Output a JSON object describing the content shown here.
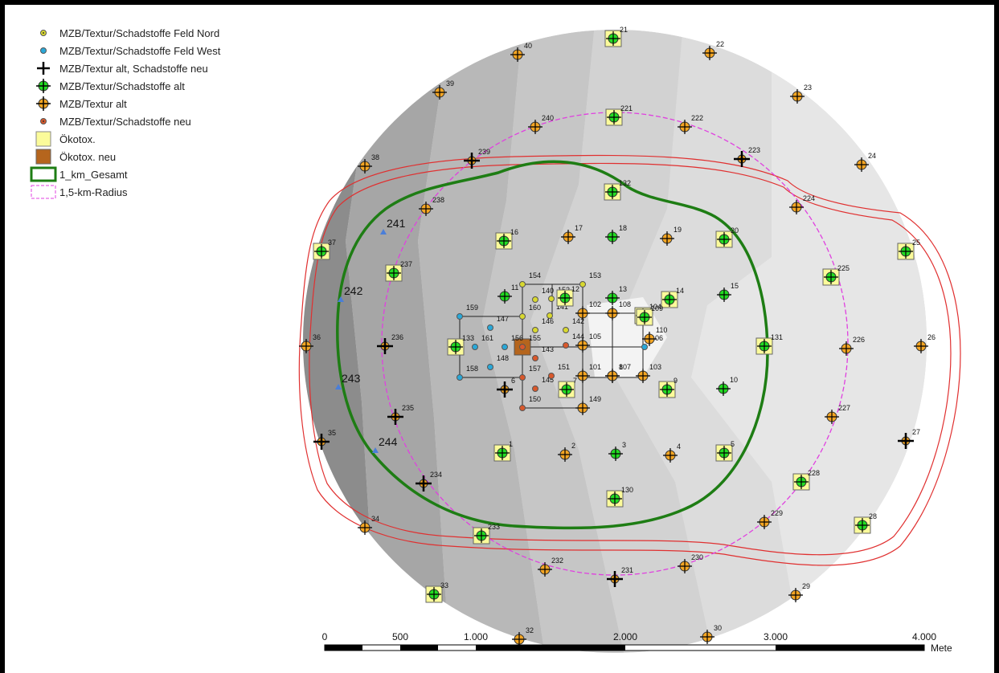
{
  "legend": {
    "nord": "MZB/Textur/Schadstoffe Feld Nord",
    "west": "MZB/Textur/Schadstoffe Feld West",
    "alt_neu": "MZB/Textur alt, Schadstoffe neu",
    "alt": "MZB/Textur/Schadstoffe alt",
    "textur_alt": "MZB/Textur alt",
    "neu": "MZB/Textur/Schadstoffe neu",
    "oekotox": "Ökotox.",
    "oekotox_neu": "Ökotox. neu",
    "gesamt": "1_km_Gesamt",
    "radius": "1,5-km-Radius"
  },
  "colors": {
    "green_boundary": "#1e7d14",
    "radius_dashed": "#e040e0",
    "red_lines": "#e03030",
    "point_green": "#22dd22",
    "point_orange": "#f5a623",
    "point_yellow": "#d8d830",
    "point_blue": "#2aa8d8",
    "point_red": "#d9582b",
    "oekotox_fill": "#fbfb9a",
    "oekotox_neu_fill": "#b5651d"
  },
  "scale_bar": {
    "labels": [
      "0",
      "500",
      "1.000",
      "2.000",
      "3.000",
      "4.000"
    ],
    "unit": "Mete"
  },
  "points": [
    {
      "id": "21",
      "type": "alt",
      "oeko": true
    },
    {
      "id": "22",
      "type": "textur_alt"
    },
    {
      "id": "23",
      "type": "textur_alt"
    },
    {
      "id": "24",
      "type": "textur_alt"
    },
    {
      "id": "25",
      "type": "alt",
      "oeko": true
    },
    {
      "id": "26",
      "type": "textur_alt"
    },
    {
      "id": "27",
      "type": "alt_neu"
    },
    {
      "id": "28",
      "type": "alt",
      "oeko": true
    },
    {
      "id": "29",
      "type": "textur_alt"
    },
    {
      "id": "30",
      "type": "textur_alt"
    },
    {
      "id": "32",
      "type": "textur_alt"
    },
    {
      "id": "33",
      "type": "alt",
      "oeko": true
    },
    {
      "id": "34",
      "type": "textur_alt"
    },
    {
      "id": "35",
      "type": "alt_neu"
    },
    {
      "id": "36",
      "type": "textur_alt"
    },
    {
      "id": "37",
      "type": "alt",
      "oeko": true
    },
    {
      "id": "38",
      "type": "textur_alt"
    },
    {
      "id": "39",
      "type": "textur_alt"
    },
    {
      "id": "40",
      "type": "textur_alt"
    },
    {
      "id": "221",
      "type": "alt",
      "oeko": true
    },
    {
      "id": "222",
      "type": "textur_alt"
    },
    {
      "id": "223",
      "type": "alt_neu"
    },
    {
      "id": "224",
      "type": "textur_alt"
    },
    {
      "id": "225",
      "type": "alt",
      "oeko": true
    },
    {
      "id": "226",
      "type": "textur_alt"
    },
    {
      "id": "227",
      "type": "textur_alt"
    },
    {
      "id": "228",
      "type": "alt",
      "oeko": true
    },
    {
      "id": "229",
      "type": "textur_alt"
    },
    {
      "id": "230",
      "type": "textur_alt"
    },
    {
      "id": "231",
      "type": "alt_neu"
    },
    {
      "id": "232",
      "type": "textur_alt"
    },
    {
      "id": "233",
      "type": "alt",
      "oeko": true
    },
    {
      "id": "234",
      "type": "alt_neu"
    },
    {
      "id": "235",
      "type": "alt_neu"
    },
    {
      "id": "236",
      "type": "alt_neu"
    },
    {
      "id": "237",
      "type": "alt",
      "oeko": true
    },
    {
      "id": "238",
      "type": "textur_alt"
    },
    {
      "id": "239",
      "type": "alt_neu"
    },
    {
      "id": "240",
      "type": "textur_alt"
    },
    {
      "id": "132",
      "type": "alt",
      "oeko": true
    },
    {
      "id": "16",
      "type": "alt",
      "oeko": true
    },
    {
      "id": "17",
      "type": "textur_alt"
    },
    {
      "id": "18",
      "type": "alt"
    },
    {
      "id": "19",
      "type": "textur_alt"
    },
    {
      "id": "20",
      "type": "alt",
      "oeko": true
    },
    {
      "id": "131",
      "type": "alt",
      "oeko": true
    },
    {
      "id": "15",
      "type": "alt"
    },
    {
      "id": "14",
      "type": "alt",
      "oeko": true
    },
    {
      "id": "13",
      "type": "alt"
    },
    {
      "id": "10",
      "type": "alt"
    },
    {
      "id": "9",
      "type": "alt",
      "oeko": true
    },
    {
      "id": "8",
      "type": "textur_alt"
    },
    {
      "id": "5",
      "type": "alt",
      "oeko": true
    },
    {
      "id": "4",
      "type": "textur_alt"
    },
    {
      "id": "3",
      "type": "alt"
    },
    {
      "id": "2",
      "type": "textur_alt"
    },
    {
      "id": "1",
      "type": "alt",
      "oeko": true
    },
    {
      "id": "130",
      "type": "alt",
      "oeko": true
    },
    {
      "id": "101",
      "type": "textur_alt"
    },
    {
      "id": "102",
      "type": "textur_alt"
    },
    {
      "id": "103",
      "type": "textur_alt"
    },
    {
      "id": "104",
      "type": "alt",
      "oeko": true
    },
    {
      "id": "105",
      "type": "textur_alt"
    },
    {
      "id": "106",
      "type": "west"
    },
    {
      "id": "107",
      "type": "textur_alt"
    },
    {
      "id": "108",
      "type": "textur_alt"
    },
    {
      "id": "109",
      "type": "alt",
      "oeko": true
    },
    {
      "id": "110",
      "type": "textur_alt"
    },
    {
      "id": "140",
      "type": "nord"
    },
    {
      "id": "141",
      "type": "nord"
    },
    {
      "id": "142",
      "type": "nord"
    },
    {
      "id": "143",
      "type": "neu"
    },
    {
      "id": "144",
      "type": "neu"
    },
    {
      "id": "145",
      "type": "neu"
    },
    {
      "id": "146",
      "type": "nord"
    },
    {
      "id": "147",
      "type": "west"
    },
    {
      "id": "148",
      "type": "west"
    },
    {
      "id": "149",
      "type": "textur_alt"
    },
    {
      "id": "150",
      "type": "neu"
    },
    {
      "id": "151",
      "type": "neu"
    },
    {
      "id": "152",
      "type": "nord"
    },
    {
      "id": "153",
      "type": "nord"
    },
    {
      "id": "154",
      "type": "nord"
    },
    {
      "id": "155",
      "type": "neu",
      "oeko_neu": true
    },
    {
      "id": "156",
      "type": "west"
    },
    {
      "id": "157",
      "type": "neu"
    },
    {
      "id": "158",
      "type": "west"
    },
    {
      "id": "159",
      "type": "west"
    },
    {
      "id": "160",
      "type": "nord"
    },
    {
      "id": "161",
      "type": "west"
    },
    {
      "id": "133",
      "type": "alt",
      "oeko": true
    },
    {
      "id": "12",
      "type": "alt",
      "oeko": true
    },
    {
      "id": "11",
      "type": "alt"
    },
    {
      "id": "6",
      "type": "alt_neu"
    },
    {
      "id": "7",
      "type": "alt",
      "oeko": true
    }
  ],
  "extra_points": [
    {
      "id": "241"
    },
    {
      "id": "242"
    },
    {
      "id": "243"
    },
    {
      "id": "244"
    }
  ]
}
